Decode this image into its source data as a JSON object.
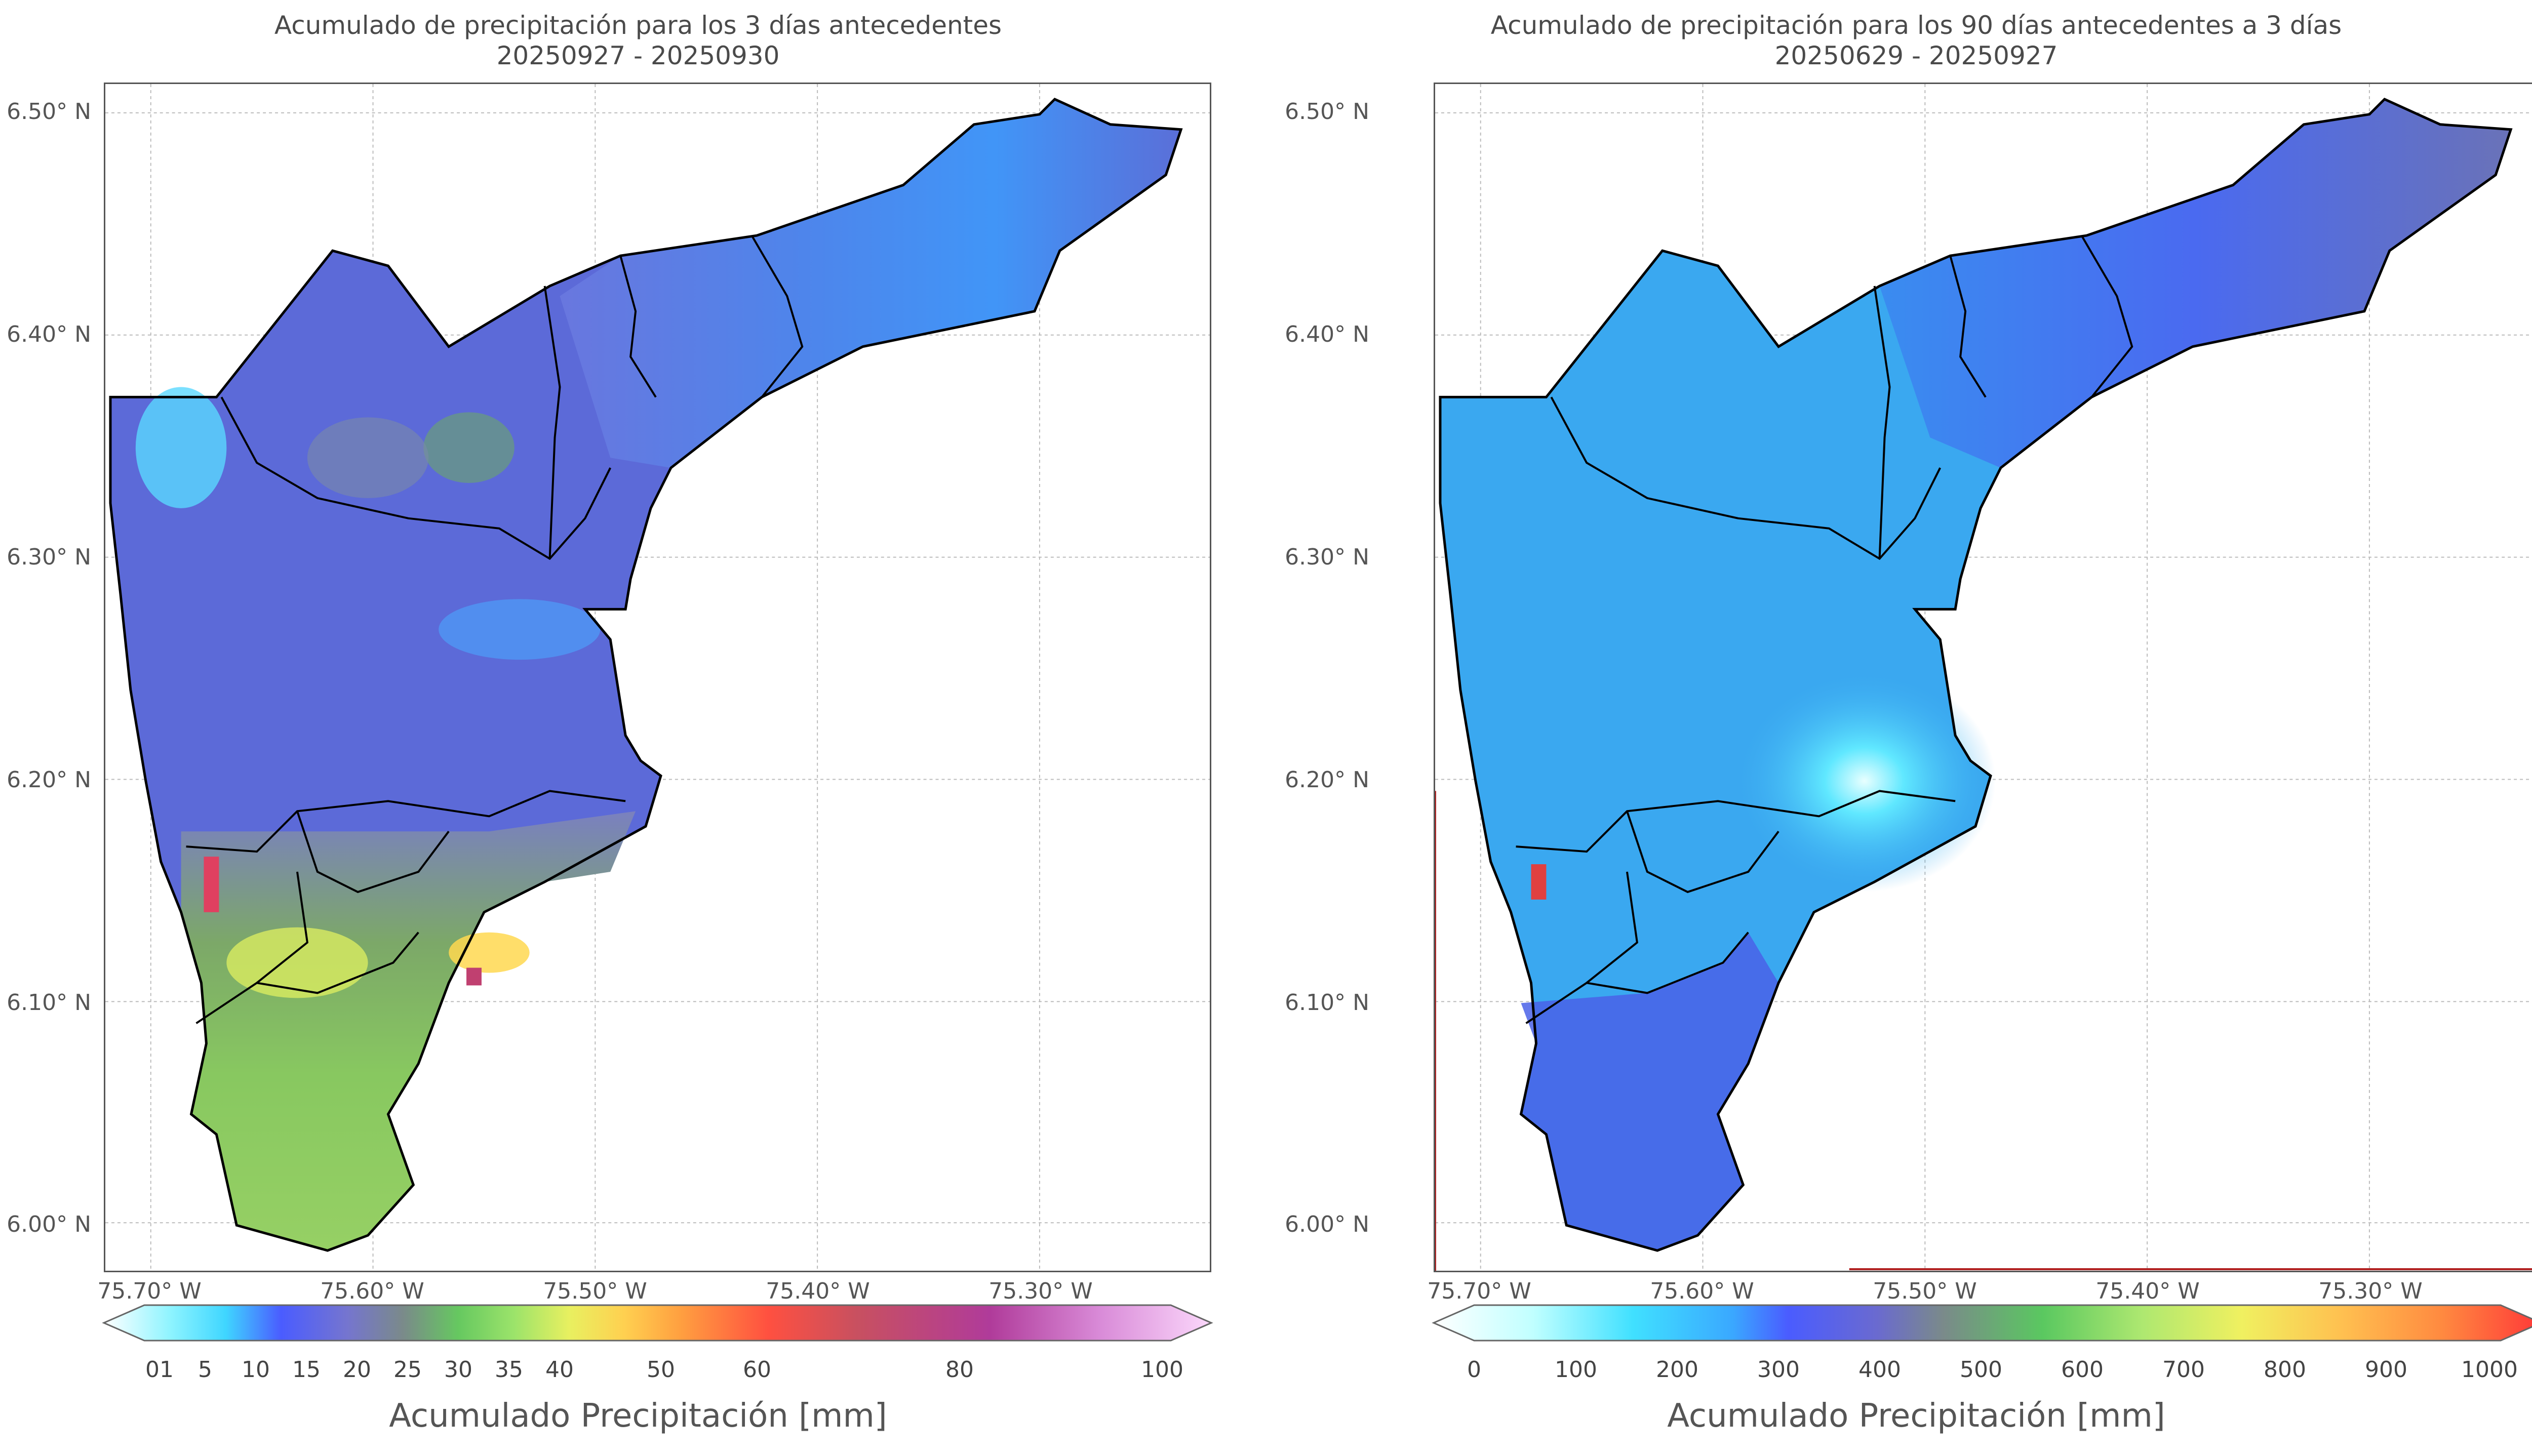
{
  "panels": [
    {
      "title_line1": "Acumulado de precipitación para los 3 días antecedentes",
      "title_line2": "20250927 - 20250930",
      "y_ticks": [
        "6.50° N",
        "6.40° N",
        "6.30° N",
        "6.20° N",
        "6.10° N",
        "6.00° N"
      ],
      "x_ticks": [
        "75.70° W",
        "75.60° W",
        "75.50° W",
        "75.40° W",
        "75.30° W"
      ],
      "colorbar_ticks": [
        "01",
        "5",
        "10",
        "15",
        "20",
        "25",
        "30",
        "35",
        "40",
        "50",
        "60",
        "80",
        "100"
      ],
      "colorbar_label": "Acumulado Precipitación [mm]",
      "colorbar_colors": [
        "#ffffff",
        "#8ef4ff",
        "#3fd6ff",
        "#4a5cff",
        "#7575cf",
        "#7a8a8a",
        "#66c860",
        "#9be36a",
        "#e8f060",
        "#ffd050",
        "#ffa040",
        "#ff5040",
        "#c85060",
        "#b03b9a",
        "#d98bd8",
        "#fbd8fb"
      ],
      "dominant_fill": "#5a6ad0"
    },
    {
      "title_line1": "Acumulado de precipitación para los 90 días antecedentes a 3 días",
      "title_line2": "20250629 - 20250927",
      "y_ticks": [
        "6.50° N",
        "6.40° N",
        "6.30° N",
        "6.20° N",
        "6.10° N",
        "6.00° N"
      ],
      "x_ticks": [
        "75.70° W",
        "75.60° W",
        "75.50° W",
        "75.40° W",
        "75.30° W"
      ],
      "colorbar_ticks": [
        "0",
        "100",
        "200",
        "300",
        "400",
        "500",
        "600",
        "700",
        "800",
        "900",
        "1000"
      ],
      "colorbar_label": "Acumulado Precipitación [mm]",
      "colorbar_colors": [
        "#ffffff",
        "#c0ffff",
        "#40e0ff",
        "#3aa8ff",
        "#4a5cff",
        "#6a6ad0",
        "#7a8a8a",
        "#5ac860",
        "#aee870",
        "#f0f060",
        "#ffc050",
        "#ff8a40",
        "#ff3838"
      ],
      "dominant_fill": "#3aa8f0"
    }
  ]
}
